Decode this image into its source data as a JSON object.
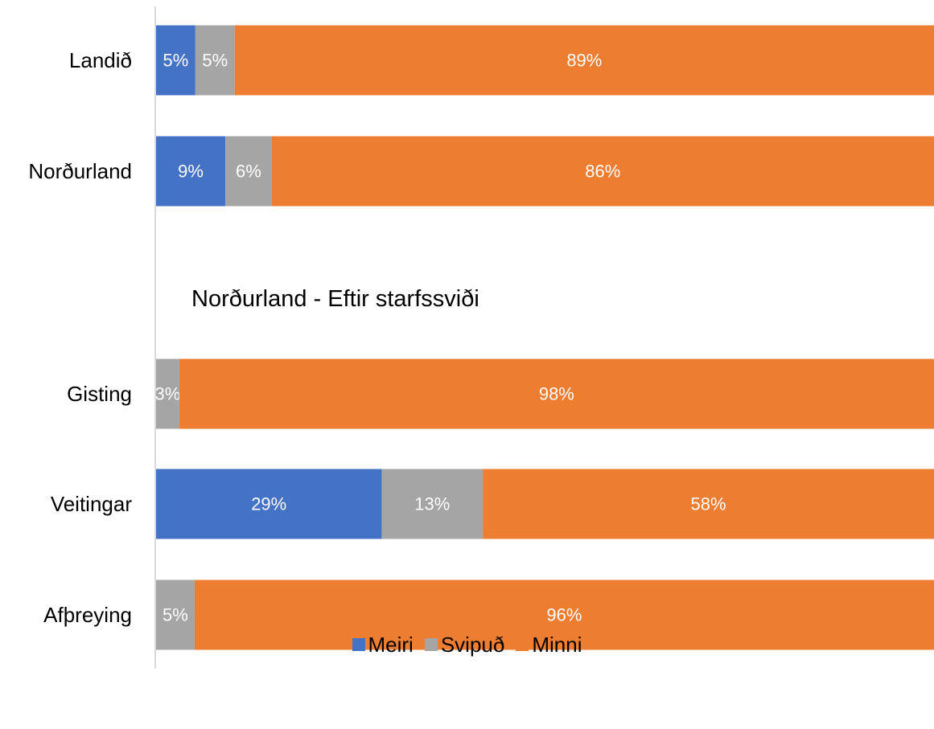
{
  "chart_data": {
    "type": "bar",
    "orientation": "horizontal",
    "stacked": "percent",
    "categories": [
      "Landið",
      "Norðurland",
      "Gisting",
      "Veitingar",
      "Afþreying"
    ],
    "series": [
      {
        "name": "Meiri",
        "color": "#4472C4",
        "values": [
          5,
          9,
          0,
          29,
          0
        ],
        "labels": [
          "5%",
          "9%",
          "",
          "29%",
          ""
        ]
      },
      {
        "name": "Svipuð",
        "color": "#A5A5A5",
        "values": [
          5,
          6,
          3,
          13,
          5
        ],
        "labels": [
          "5%",
          "6%",
          "3%",
          "13%",
          "5%"
        ]
      },
      {
        "name": "Minni",
        "color": "#ED7D31",
        "values": [
          89,
          86,
          98,
          58,
          96
        ],
        "labels": [
          "89%",
          "86%",
          "98%",
          "58%",
          "96%"
        ]
      }
    ],
    "subtitle": "Norðurland - Eftir starfssviði",
    "legend_position": "bottom",
    "grid": false,
    "axis_color": "#D9D9D9"
  }
}
